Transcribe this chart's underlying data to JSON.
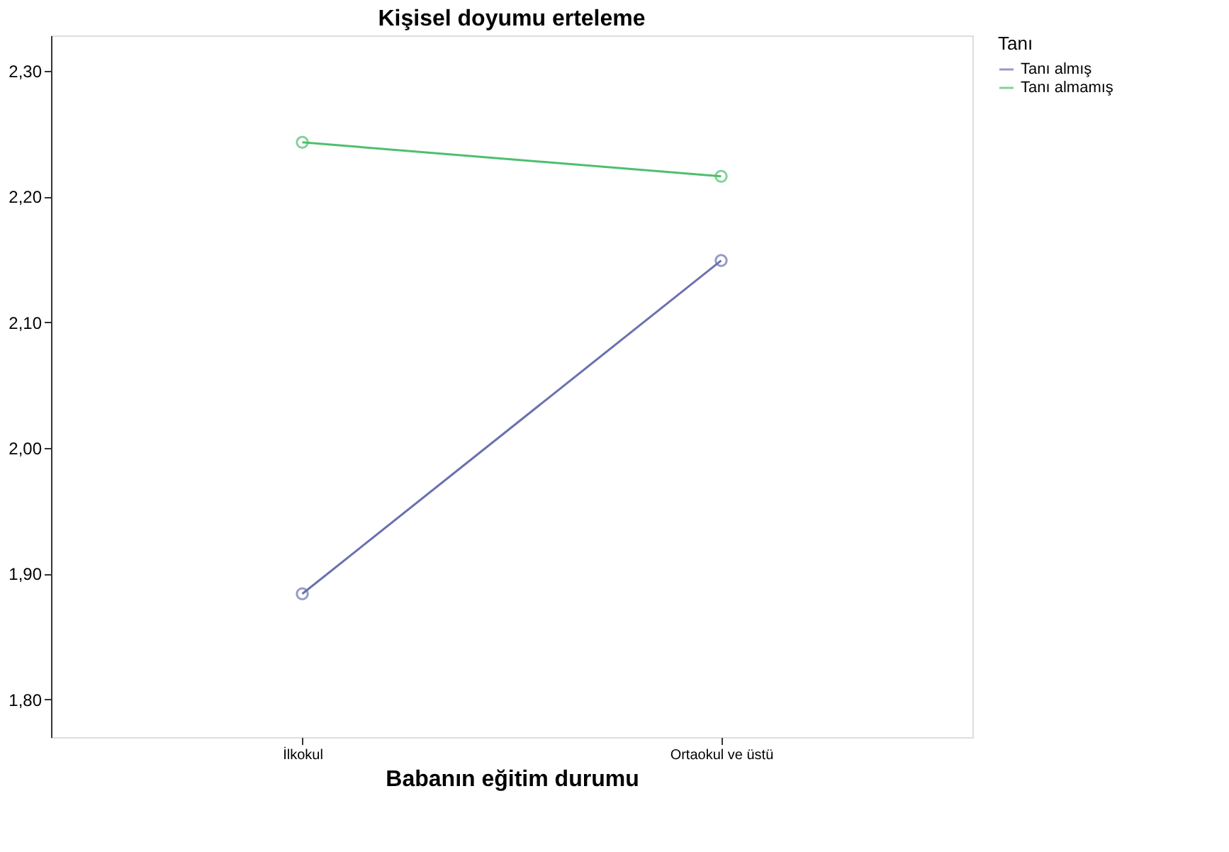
{
  "chart_data": {
    "type": "line",
    "title": "Kişisel doyumu erteleme",
    "xlabel": "Babanın eğitim durumu",
    "legend_title": "Tanı",
    "categories": [
      "İlkokul",
      "Ortaokul ve üstü"
    ],
    "series": [
      {
        "name": "Tanı almış",
        "color": "#6b70b0",
        "values": [
          1.884,
          2.149
        ]
      },
      {
        "name": "Tanı almamış",
        "color": "#4dbf6e",
        "values": [
          2.243,
          2.216
        ]
      }
    ],
    "ylim": [
      1.77,
      2.328
    ],
    "yticks": [
      {
        "value": 1.8,
        "label": "1,80"
      },
      {
        "value": 1.9,
        "label": "1,90"
      },
      {
        "value": 2.0,
        "label": "2,00"
      },
      {
        "value": 2.1,
        "label": "2,10"
      },
      {
        "value": 2.2,
        "label": "2,20"
      },
      {
        "value": 2.3,
        "label": "2,30"
      }
    ],
    "legend": "top right",
    "marker": "circle",
    "line_style": "solid",
    "grid": false
  }
}
